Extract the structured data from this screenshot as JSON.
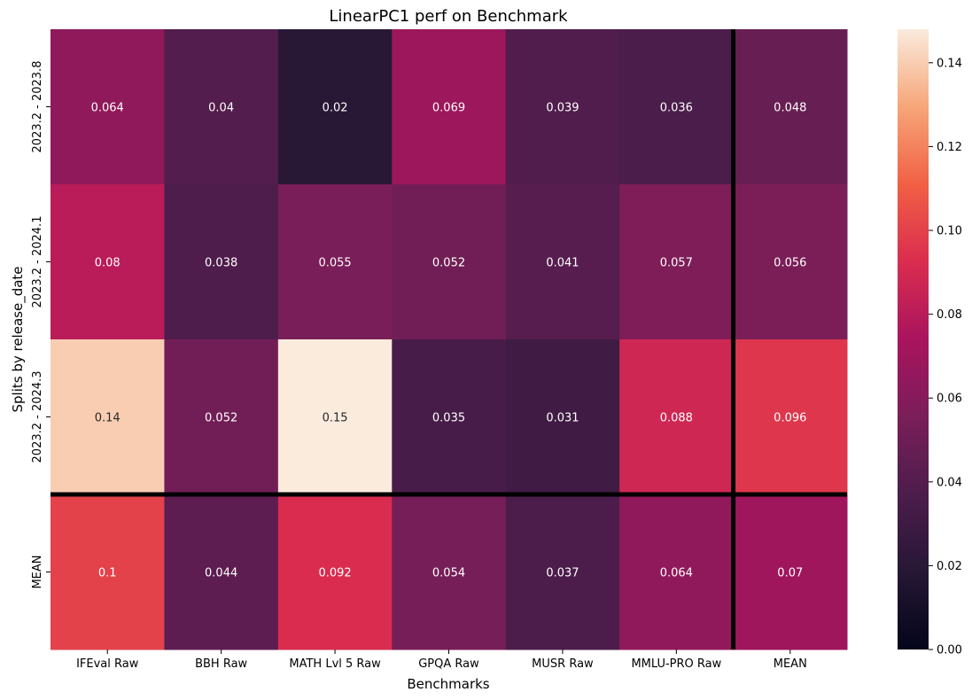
{
  "chart_data": {
    "type": "heatmap",
    "title": "LinearPC1 perf on Benchmark",
    "xlabel": "Benchmarks",
    "ylabel": "Splits by release_date",
    "columns": [
      "IFEval Raw",
      "BBH Raw",
      "MATH Lvl 5 Raw",
      "GPQA Raw",
      "MUSR Raw",
      "MMLU-PRO Raw",
      "MEAN"
    ],
    "rows": [
      "2023.2 - 2023.8",
      "2023.2 - 2024.1",
      "2023.2 - 2024.3",
      "MEAN"
    ],
    "values": [
      [
        0.064,
        0.04,
        0.02,
        0.069,
        0.039,
        0.036,
        0.048
      ],
      [
        0.08,
        0.038,
        0.055,
        0.052,
        0.041,
        0.057,
        0.056
      ],
      [
        0.14,
        0.052,
        0.15,
        0.035,
        0.031,
        0.088,
        0.096
      ],
      [
        0.1,
        0.044,
        0.092,
        0.054,
        0.037,
        0.064,
        0.07
      ]
    ],
    "colorbar": {
      "vmin": 0.0,
      "vmax": 0.148,
      "ticks": [
        "0.00",
        "0.02",
        "0.04",
        "0.06",
        "0.08",
        "0.10",
        "0.12",
        "0.14"
      ],
      "colormap": "rocket"
    },
    "separators": [
      "between the last split row and the MEAN row",
      "between MMLU-PRO Raw and the MEAN column"
    ]
  }
}
